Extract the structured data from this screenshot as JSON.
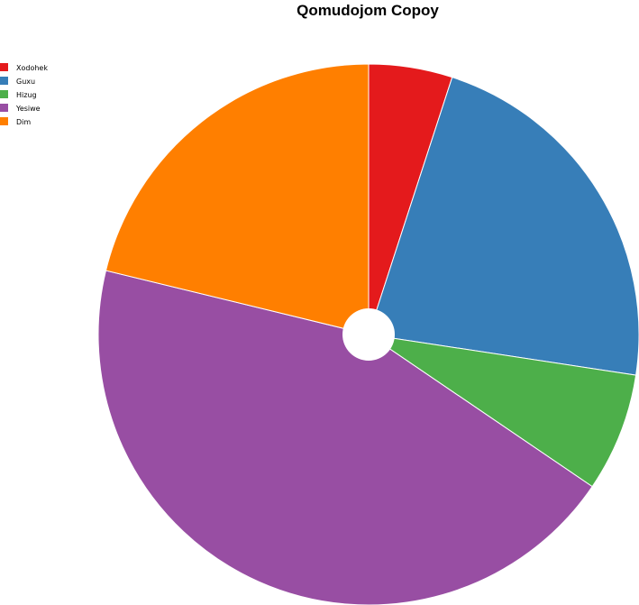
{
  "chart_data": {
    "type": "pie",
    "title": "Qomudojom Copoy",
    "donut_hole": true,
    "legend_position": "top-left",
    "categories": [
      "Xodohek",
      "Guxu",
      "Hizug",
      "Yesiwe",
      "Dim"
    ],
    "values": [
      5.0,
      22.4,
      7.1,
      44.3,
      21.2
    ],
    "colors": [
      "#e41a1c",
      "#377eb8",
      "#4daf4a",
      "#984ea3",
      "#ff7f00"
    ]
  }
}
